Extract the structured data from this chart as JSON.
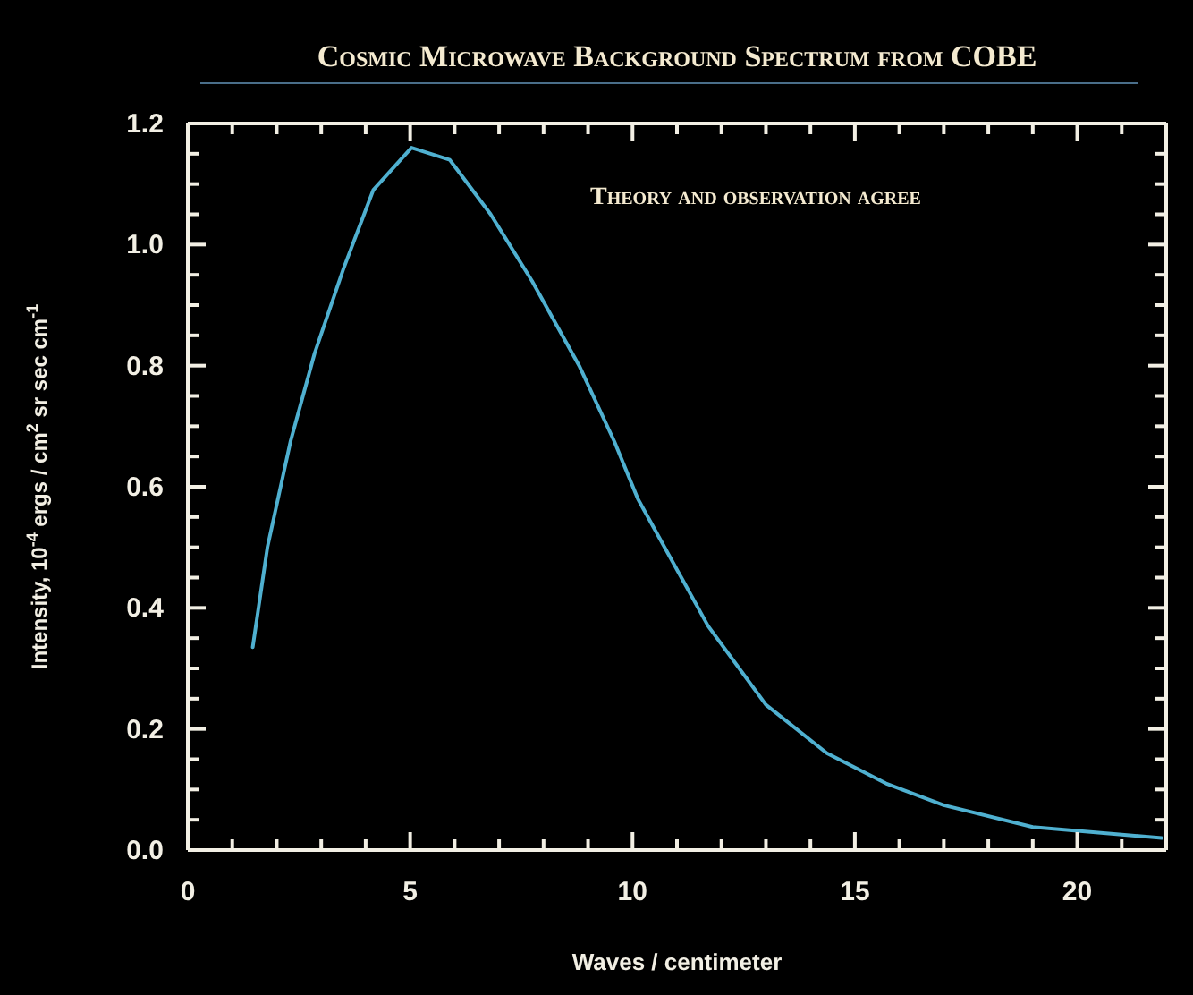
{
  "chart_data": {
    "type": "line",
    "title": "Cosmic Microwave Background Spectrum from COBE",
    "xlabel": "Waves / centimeter",
    "ylabel": "Intensity, 10$^{-4}$ ergs / cm$^{2}$ sr sec cm$^{-1}$",
    "annotations": [
      "Theory and observation agree"
    ],
    "x": [
      1.46,
      1.79,
      2.31,
      2.85,
      3.5,
      4.17,
      5.03,
      5.89,
      6.81,
      7.74,
      8.8,
      9.59,
      10.12,
      11.7,
      13.0,
      14.37,
      15.7,
      17.0,
      19.0,
      21.9
    ],
    "series": [
      {
        "color": "#4fb0d0",
        "values": [
          0.335,
          0.5,
          0.675,
          0.82,
          0.96,
          1.09,
          1.16,
          1.14,
          1.05,
          0.94,
          0.8,
          0.675,
          0.58,
          0.37,
          0.24,
          0.16,
          0.11,
          0.074,
          0.038,
          0.02
        ]
      }
    ],
    "xlim": [
      0,
      22
    ],
    "xticks": [
      0,
      {
        "value": 1,
        "label": null
      },
      {
        "value": 2,
        "label": null
      },
      {
        "value": 3,
        "label": null
      },
      {
        "value": 4,
        "label": null
      },
      5,
      {
        "value": 6,
        "label": null
      },
      {
        "value": 7,
        "label": null
      },
      {
        "value": 8,
        "label": null
      },
      {
        "value": 9,
        "label": null
      },
      10,
      {
        "value": 11,
        "label": null
      },
      {
        "value": 12,
        "label": null
      },
      {
        "value": 13,
        "label": null
      },
      {
        "value": 14,
        "label": null
      },
      15,
      {
        "value": 16,
        "label": null
      },
      {
        "value": 17,
        "label": null
      },
      {
        "value": 18,
        "label": null
      },
      {
        "value": 19,
        "label": null
      },
      20,
      {
        "value": 21,
        "label": null
      }
    ],
    "ylim": [
      0,
      1.2
    ],
    "yticks": [
      {
        "value": 0,
        "label": "0.0"
      },
      {
        "value": 0.05,
        "label": null
      },
      {
        "value": 0.1,
        "label": null
      },
      {
        "value": 0.15,
        "label": null
      },
      0.2,
      {
        "value": 0.25,
        "label": null
      },
      {
        "value": 0.3,
        "label": null
      },
      {
        "value": 0.35,
        "label": null
      },
      0.4,
      {
        "value": 0.45,
        "label": null
      },
      {
        "value": 0.5,
        "label": null
      },
      {
        "value": 0.55,
        "label": null
      },
      0.6,
      {
        "value": 0.65,
        "label": null
      },
      {
        "value": 0.7,
        "label": null
      },
      {
        "value": 0.75,
        "label": null
      },
      0.8,
      {
        "value": 0.85,
        "label": null
      },
      {
        "value": 0.9,
        "label": null
      },
      {
        "value": 0.95,
        "label": null
      },
      {
        "value": 1,
        "label": "1.0"
      },
      {
        "value": 1.05,
        "label": null
      },
      {
        "value": 1.1,
        "label": null
      },
      {
        "value": 1.15,
        "label": null
      },
      1.2
    ],
    "grid": false,
    "legend": false,
    "marker": "none",
    "line_style": "solid"
  }
}
